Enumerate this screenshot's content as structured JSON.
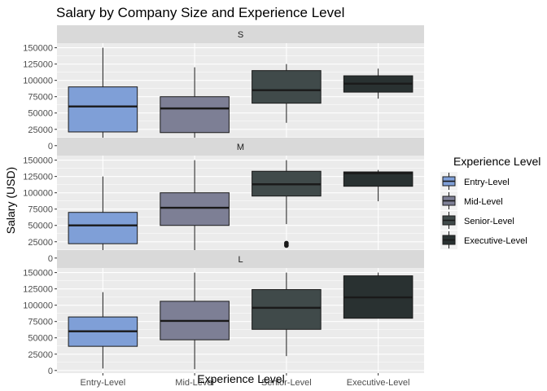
{
  "colors": {
    "Entry-Level": "#7f9fd7",
    "Mid-Level": "#7d7f95",
    "Senior-Level": "#404a4a",
    "Executive-Level": "#293131"
  },
  "chart_data": {
    "type": "boxplot",
    "title": "Salary by Company Size and Experience Level",
    "xlabel": "Experience Level",
    "ylabel": "Salary (USD)",
    "categories": [
      "Entry-Level",
      "Mid-Level",
      "Senior-Level",
      "Executive-Level"
    ],
    "y_ticks": [
      0,
      25000,
      50000,
      75000,
      100000,
      125000,
      150000
    ],
    "y_tick_labels": [
      "0",
      "25000",
      "50000",
      "75000",
      "100000",
      "125000",
      "150000"
    ],
    "ylim": [
      -4000,
      157000
    ],
    "grid": true,
    "legend": {
      "title": "Experience Level",
      "position": "right",
      "entries": [
        "Entry-Level",
        "Mid-Level",
        "Senior-Level",
        "Executive-Level"
      ]
    },
    "facets": [
      {
        "label": "S",
        "boxes": [
          {
            "category": "Entry-Level",
            "min": 5000,
            "q1": 21000,
            "median": 60000,
            "q3": 90000,
            "max": 150000,
            "outliers": []
          },
          {
            "category": "Mid-Level",
            "min": 2000,
            "q1": 20000,
            "median": 57000,
            "q3": 75000,
            "max": 120000,
            "outliers": []
          },
          {
            "category": "Senior-Level",
            "min": 35000,
            "q1": 65000,
            "median": 85000,
            "q3": 115000,
            "max": 125000,
            "outliers": []
          },
          {
            "category": "Executive-Level",
            "min": 72000,
            "q1": 82000,
            "median": 95000,
            "q3": 107000,
            "max": 118000,
            "outliers": []
          }
        ]
      },
      {
        "label": "M",
        "boxes": [
          {
            "category": "Entry-Level",
            "min": 3000,
            "q1": 22000,
            "median": 50000,
            "q3": 70000,
            "max": 125000,
            "outliers": []
          },
          {
            "category": "Mid-Level",
            "min": 3000,
            "q1": 50000,
            "median": 77000,
            "q3": 100000,
            "max": 150000,
            "outliers": []
          },
          {
            "category": "Senior-Level",
            "min": 52000,
            "q1": 95000,
            "median": 113000,
            "q3": 133000,
            "max": 150000,
            "outliers": [
              19000,
              21000,
              23000
            ]
          },
          {
            "category": "Executive-Level",
            "min": 87000,
            "q1": 110000,
            "median": 130000,
            "q3": 132000,
            "max": 135000,
            "outliers": []
          }
        ]
      },
      {
        "label": "L",
        "boxes": [
          {
            "category": "Entry-Level",
            "min": 3000,
            "q1": 37000,
            "median": 60000,
            "q3": 82000,
            "max": 120000,
            "outliers": []
          },
          {
            "category": "Mid-Level",
            "min": 2000,
            "q1": 47000,
            "median": 76000,
            "q3": 106000,
            "max": 150000,
            "outliers": []
          },
          {
            "category": "Senior-Level",
            "min": 22000,
            "q1": 63000,
            "median": 96000,
            "q3": 124000,
            "max": 150000,
            "outliers": []
          },
          {
            "category": "Executive-Level",
            "min": 80000,
            "q1": 80000,
            "median": 112000,
            "q3": 145000,
            "max": 150000,
            "outliers": []
          }
        ]
      }
    ]
  }
}
